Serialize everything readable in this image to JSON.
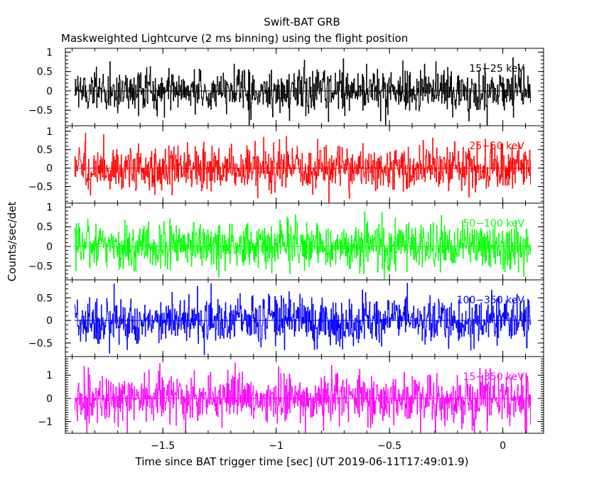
{
  "chart_data": {
    "type": "line",
    "title": "Swift-BAT GRB",
    "subtitle": "Maskweighted Lightcurve (2 ms binning) using the flight position",
    "xlabel": "Time since BAT trigger time [sec] (UT 2019-06-11T17:49:01.9)",
    "ylabel": "Counts/sec/det",
    "xlim": [
      -1.93,
      0.18
    ],
    "x_ticks": [
      -1.5,
      -1,
      -0.5,
      0
    ],
    "x_tick_labels": [
      "−1.5",
      "−1",
      "−0.5",
      "0"
    ],
    "data_range": [
      -1.89,
      0.125
    ],
    "bin_width": 0.002,
    "panels": [
      {
        "name": "15-25 keV",
        "label": "15−25 keV",
        "color": "#000000",
        "ylim": [
          -0.9,
          1.1
        ],
        "ticks": [
          -0.5,
          0,
          0.5,
          1
        ],
        "tick_labels": [
          "−0.5",
          "0",
          "0.5",
          "1"
        ],
        "amp": 0.28
      },
      {
        "name": "25-50 keV",
        "label": "25−50 keV",
        "color": "#ff0000",
        "ylim": [
          -0.95,
          1.15
        ],
        "ticks": [
          -0.5,
          0,
          0.5,
          1
        ],
        "tick_labels": [
          "−0.5",
          "0",
          "0.5",
          "1"
        ],
        "amp": 0.3
      },
      {
        "name": "50-100 keV",
        "label": "50−100 keV",
        "color": "#00ff00",
        "ylim": [
          -0.85,
          1.1
        ],
        "ticks": [
          -0.5,
          0,
          0.5,
          1
        ],
        "tick_labels": [
          "−0.5",
          "0",
          "0.5",
          "1"
        ],
        "amp": 0.3
      },
      {
        "name": "100-350 keV",
        "label": "100−350 keV",
        "color": "#0000ff",
        "ylim": [
          -0.8,
          0.9
        ],
        "ticks": [
          -0.5,
          0,
          0.5
        ],
        "tick_labels": [
          "−0.5",
          "0",
          "0.5"
        ],
        "amp": 0.26
      },
      {
        "name": "15-350 keV",
        "label": "15−350 keV",
        "color": "#ff00ff",
        "ylim": [
          -1.5,
          1.8
        ],
        "ticks": [
          -1,
          0,
          1
        ],
        "tick_labels": [
          "−1",
          "0",
          "1"
        ],
        "amp": 0.55
      }
    ]
  }
}
